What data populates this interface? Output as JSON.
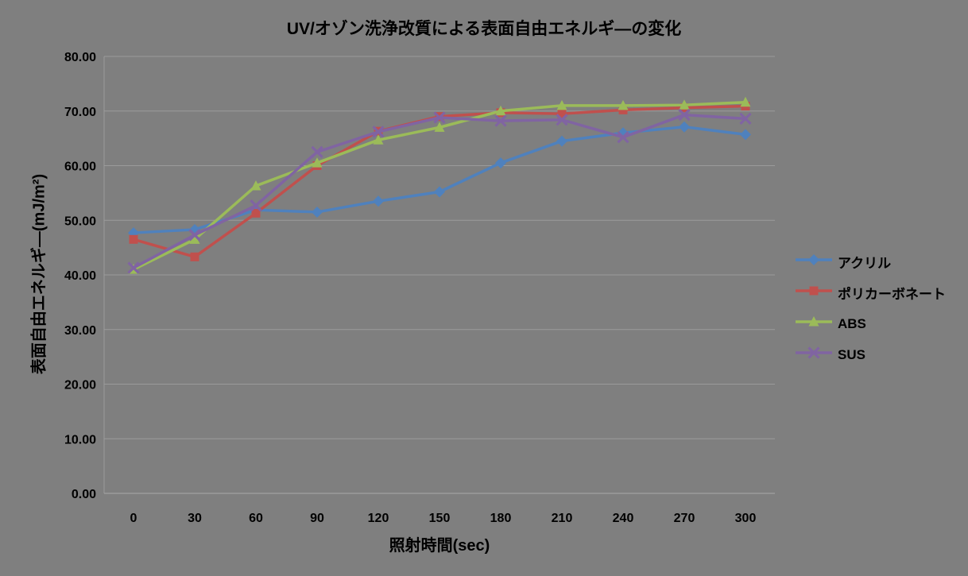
{
  "chart_data": {
    "type": "line",
    "title": "UV/オゾン洗浄改質による表面自由エネルギ―の変化",
    "xlabel": "照射時間(sec)",
    "ylabel": "表面自由エネルギ―(mJ/m²)",
    "x": [
      0,
      30,
      60,
      90,
      120,
      150,
      180,
      210,
      240,
      270,
      300
    ],
    "x_tick_labels": [
      "0",
      "30",
      "60",
      "90",
      "120",
      "150",
      "180",
      "210",
      "240",
      "270",
      "300"
    ],
    "ylim": [
      0,
      80
    ],
    "y_ticks": [
      0,
      10,
      20,
      30,
      40,
      50,
      60,
      70,
      80
    ],
    "y_tick_labels": [
      "0.00",
      "10.00",
      "20.00",
      "30.00",
      "40.00",
      "50.00",
      "60.00",
      "70.00",
      "80.00"
    ],
    "grid": "horizontal",
    "legend_position": "right",
    "series": [
      {
        "name": "アクリル",
        "marker": "diamond",
        "color": "#4F81BD",
        "values": [
          47.7,
          48.3,
          51.9,
          51.5,
          53.5,
          55.2,
          60.5,
          64.5,
          66.0,
          67.1,
          65.7
        ]
      },
      {
        "name": "ポリカーボネート",
        "marker": "square",
        "color": "#C0504D",
        "values": [
          46.5,
          43.3,
          51.3,
          60.0,
          66.3,
          69.0,
          69.7,
          69.5,
          70.2,
          70.6,
          70.9
        ]
      },
      {
        "name": "ABS",
        "marker": "triangle",
        "color": "#9BBB59",
        "values": [
          41.0,
          46.5,
          56.3,
          60.5,
          64.7,
          67.0,
          70.0,
          71.0,
          71.0,
          71.1,
          71.6
        ]
      },
      {
        "name": "SUS",
        "marker": "x",
        "color": "#8064A2",
        "values": [
          41.3,
          47.3,
          52.7,
          62.5,
          66.2,
          68.8,
          68.2,
          68.4,
          65.2,
          69.3,
          68.6
        ]
      }
    ],
    "colors": {
      "background": "#7F7F7F",
      "gridline": "#9B9B9B",
      "axis": "#9B9B9B",
      "text": "#000000"
    }
  }
}
